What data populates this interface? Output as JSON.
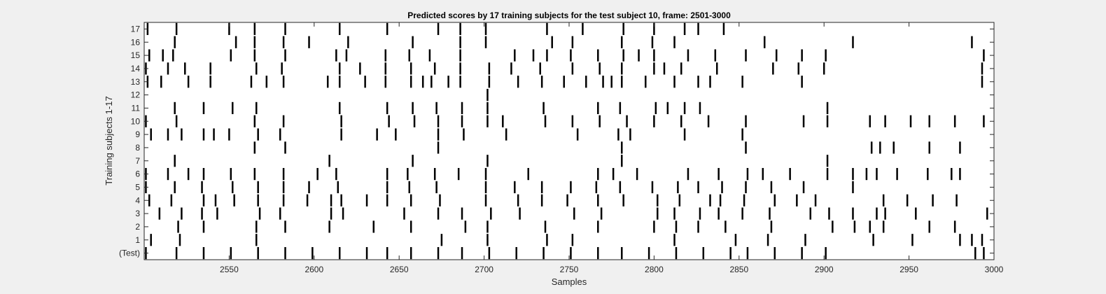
{
  "figure": {
    "background": "#f0f0f0",
    "axes_background": "#ffffff",
    "mark_color": "#000000"
  },
  "chart_data": {
    "type": "raster",
    "title": "Predicted scores by 17 training subjects for the test subject 10, frame: 2501-3000",
    "xlabel": "Samples",
    "ylabel": "Training subjects 1-17",
    "xlim": [
      2500,
      3000
    ],
    "x_ticks": [
      2550,
      2600,
      2650,
      2700,
      2750,
      2800,
      2850,
      2900,
      2950,
      3000
    ],
    "y_tick_labels": [
      "(Test)",
      "1",
      "2",
      "3",
      "4",
      "5",
      "6",
      "7",
      "8",
      "9",
      "10",
      "11",
      "12",
      "13",
      "14",
      "15",
      "16",
      "17"
    ],
    "grid": false,
    "rows": [
      {
        "label": "(Test)",
        "x": [
          2501,
          2519,
          2535,
          2551,
          2567,
          2583,
          2599,
          2615,
          2631,
          2643,
          2657,
          2673,
          2687,
          2703,
          2719,
          2735,
          2751,
          2767,
          2781,
          2797,
          2813,
          2829,
          2845,
          2855,
          2871,
          2887,
          2901,
          2989,
          2994
        ]
      },
      {
        "label": "1",
        "x": [
          2504,
          2521,
          2566,
          2675,
          2702,
          2737,
          2752,
          2812,
          2848,
          2867,
          2889,
          2929,
          2952,
          2980,
          2987,
          2993
        ]
      },
      {
        "label": "2",
        "x": [
          2520,
          2535,
          2566,
          2583,
          2609,
          2635,
          2657,
          2689,
          2702,
          2736,
          2767,
          2800,
          2813,
          2826,
          2842,
          2869,
          2905,
          2918,
          2927,
          2935,
          2962,
          2977
        ]
      },
      {
        "label": "3",
        "x": [
          2509,
          2522,
          2534,
          2543,
          2568,
          2580,
          2610,
          2617,
          2653,
          2673,
          2687,
          2704,
          2721,
          2753,
          2769,
          2802,
          2812,
          2827,
          2838,
          2852,
          2868,
          2892,
          2903,
          2917,
          2931,
          2936,
          2954,
          2996
        ]
      },
      {
        "label": "4",
        "x": [
          2503,
          2516,
          2535,
          2542,
          2553,
          2567,
          2582,
          2596,
          2610,
          2616,
          2631,
          2643,
          2657,
          2674,
          2701,
          2720,
          2734,
          2749,
          2767,
          2782,
          2802,
          2815,
          2833,
          2839,
          2853,
          2871,
          2884,
          2895,
          2935,
          2949,
          2964,
          2978
        ]
      },
      {
        "label": "5",
        "x": [
          2501,
          2518,
          2534,
          2552,
          2567,
          2582,
          2597,
          2614,
          2643,
          2656,
          2672,
          2701,
          2718,
          2734,
          2751,
          2766,
          2780,
          2799,
          2814,
          2826,
          2840,
          2854,
          2869,
          2888,
          2917
        ]
      },
      {
        "label": "6",
        "x": [
          2501,
          2514,
          2526,
          2535,
          2551,
          2565,
          2582,
          2602,
          2613,
          2643,
          2655,
          2671,
          2685,
          2701,
          2726,
          2767,
          2776,
          2790,
          2820,
          2838,
          2855,
          2864,
          2880,
          2902,
          2917,
          2925,
          2931,
          2943,
          2961,
          2975,
          2980
        ]
      },
      {
        "label": "7",
        "x": [
          2518,
          2609,
          2658,
          2702,
          2781,
          2902
        ]
      },
      {
        "label": "8",
        "x": [
          2565,
          2583,
          2673,
          2781,
          2854,
          2928,
          2933,
          2941,
          2962,
          2980
        ]
      },
      {
        "label": "9",
        "x": [
          2504,
          2514,
          2522,
          2535,
          2541,
          2550,
          2567,
          2580,
          2616,
          2637,
          2648,
          2673,
          2688,
          2713,
          2755,
          2779,
          2786,
          2818,
          2852
        ]
      },
      {
        "label": "10",
        "x": [
          2501,
          2519,
          2565,
          2582,
          2616,
          2644,
          2659,
          2673,
          2687,
          2702,
          2711,
          2736,
          2752,
          2768,
          2784,
          2800,
          2816,
          2832,
          2854,
          2888,
          2902,
          2927,
          2936,
          2951,
          2962,
          2977,
          2994
        ]
      },
      {
        "label": "11",
        "x": [
          2518,
          2535,
          2552,
          2566,
          2615,
          2643,
          2658,
          2672,
          2687,
          2702,
          2735,
          2767,
          2780,
          2801,
          2808,
          2818,
          2827,
          2902
        ]
      },
      {
        "label": "12",
        "x": [
          2702
        ]
      },
      {
        "label": "13",
        "x": [
          2502,
          2510,
          2526,
          2539,
          2563,
          2572,
          2582,
          2608,
          2615,
          2630,
          2642,
          2657,
          2664,
          2669,
          2679,
          2686,
          2703,
          2720,
          2734,
          2747,
          2760,
          2770,
          2775,
          2781,
          2795,
          2812,
          2826,
          2833,
          2852,
          2887,
          2993
        ]
      },
      {
        "label": "14",
        "x": [
          2501,
          2514,
          2524,
          2539,
          2566,
          2581,
          2615,
          2627,
          2642,
          2657,
          2671,
          2686,
          2703,
          2716,
          2733,
          2752,
          2768,
          2781,
          2800,
          2806,
          2816,
          2837,
          2870,
          2885,
          2900,
          2993
        ]
      },
      {
        "label": "15",
        "x": [
          2503,
          2511,
          2517,
          2551,
          2565,
          2583,
          2613,
          2619,
          2642,
          2656,
          2668,
          2686,
          2718,
          2729,
          2737,
          2751,
          2767,
          2782,
          2791,
          2800,
          2820,
          2836,
          2854,
          2872,
          2887,
          2901,
          2994
        ]
      },
      {
        "label": "16",
        "x": [
          2518,
          2554,
          2565,
          2582,
          2597,
          2620,
          2658,
          2686,
          2701,
          2740,
          2752,
          2781,
          2799,
          2812,
          2865,
          2917,
          2987
        ]
      },
      {
        "label": "17",
        "x": [
          2502,
          2519,
          2550,
          2565,
          2583,
          2615,
          2643,
          2673,
          2686,
          2701,
          2737,
          2758,
          2782,
          2800,
          2818,
          2826,
          2841
        ]
      }
    ]
  }
}
